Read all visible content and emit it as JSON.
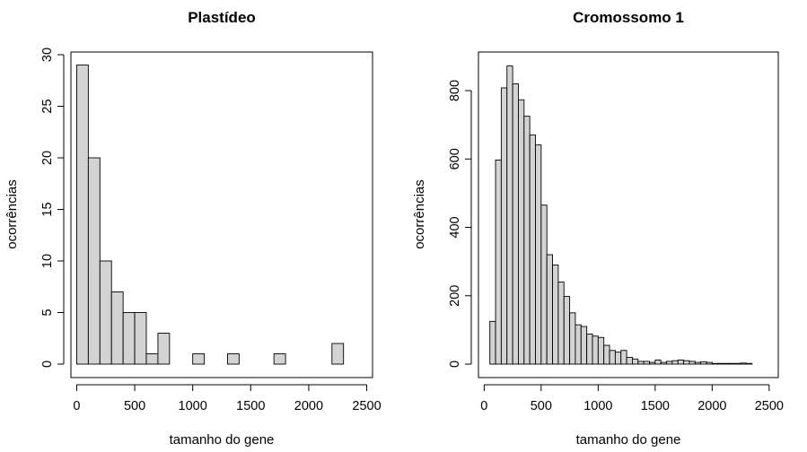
{
  "chart_data": [
    {
      "type": "bar",
      "title": "Plastídeo",
      "xlabel": "tamanho do gene",
      "ylabel": "ocorrências",
      "xlim": [
        -50,
        2550
      ],
      "ylim": [
        0,
        30
      ],
      "bin_width": 100,
      "xticks": [
        "0",
        "500",
        "1000",
        "1500",
        "2000",
        "2500"
      ],
      "yticks": [
        "0",
        "5",
        "10",
        "15",
        "20",
        "25",
        "30"
      ],
      "bins_start": 0,
      "values": [
        29,
        20,
        10,
        7,
        5,
        5,
        1,
        3,
        0,
        0,
        1,
        0,
        0,
        1,
        0,
        0,
        0,
        1,
        0,
        0,
        0,
        0,
        2
      ]
    },
    {
      "type": "bar",
      "title": "Cromossomo 1",
      "xlabel": "tamanho do gene",
      "ylabel": "ocorrências",
      "xlim": [
        -50,
        2580
      ],
      "ylim": [
        0,
        905
      ],
      "bin_width": 50,
      "xticks": [
        "0",
        "500",
        "1000",
        "1500",
        "2000",
        "2500"
      ],
      "yticks": [
        "0",
        "200",
        "400",
        "600",
        "800"
      ],
      "bins_start": 50,
      "values": [
        125,
        597,
        808,
        872,
        820,
        773,
        725,
        670,
        641,
        465,
        320,
        290,
        240,
        198,
        150,
        115,
        110,
        88,
        82,
        78,
        55,
        40,
        35,
        40,
        20,
        15,
        8,
        8,
        5,
        12,
        5,
        8,
        10,
        12,
        10,
        8,
        5,
        7,
        5,
        2,
        2,
        2,
        2,
        2,
        3,
        2
      ]
    }
  ]
}
